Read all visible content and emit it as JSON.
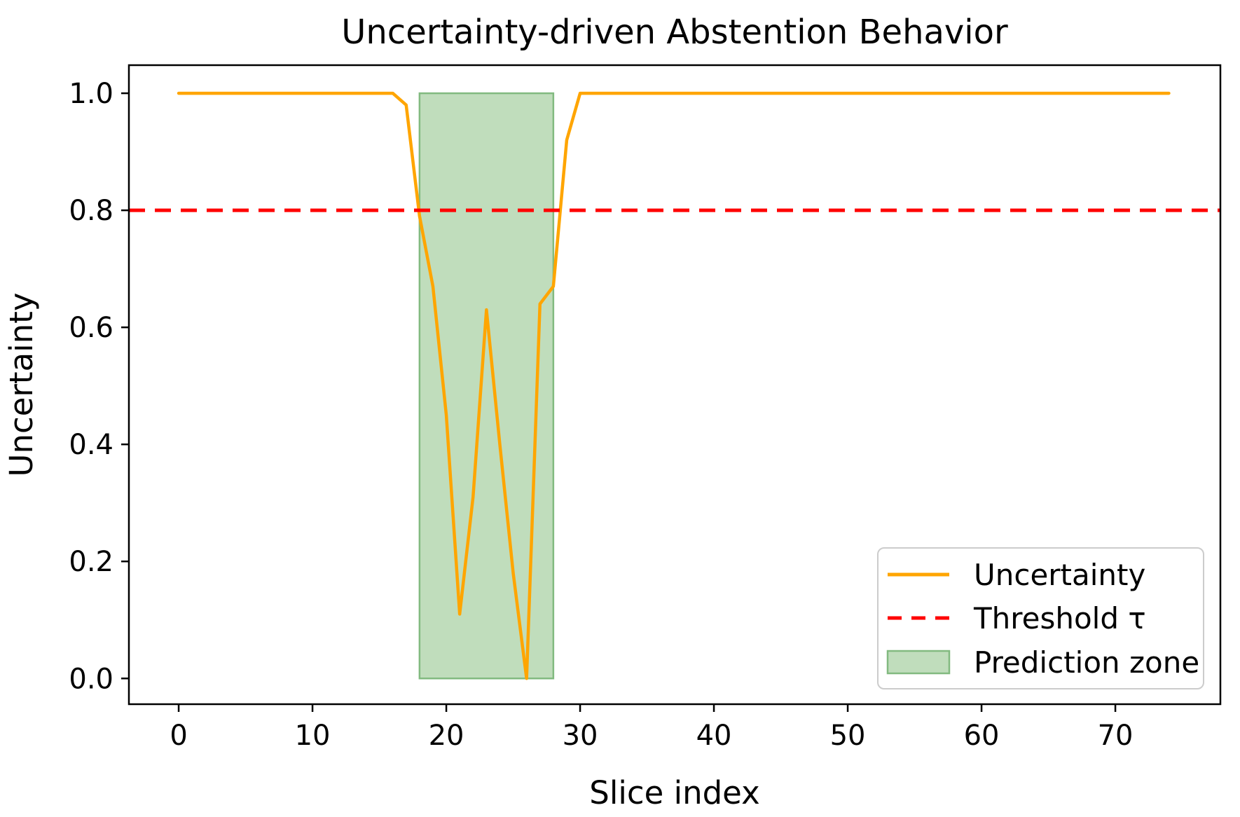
{
  "chart_data": {
    "type": "line",
    "title": "Uncertainty-driven Abstention Behavior",
    "xlabel": "Slice index",
    "ylabel": "Uncertainty",
    "xlim": [
      -3.72,
      77.85
    ],
    "ylim": [
      -0.044,
      1.048
    ],
    "grid": false,
    "xticks": {
      "values": [
        0,
        10,
        20,
        30,
        40,
        50,
        60,
        70
      ],
      "labels": [
        "0",
        "10",
        "20",
        "30",
        "40",
        "50",
        "60",
        "70"
      ]
    },
    "yticks": {
      "values": [
        0.0,
        0.2,
        0.4,
        0.6,
        0.8,
        1.0
      ],
      "labels": [
        "0.0",
        "0.2",
        "0.4",
        "0.6",
        "0.8",
        "1.0"
      ]
    },
    "series": [
      {
        "name": "Uncertainty",
        "color": "#ffa500",
        "line_width": 4.5,
        "x": [
          0,
          1,
          2,
          3,
          4,
          5,
          6,
          7,
          8,
          9,
          10,
          11,
          12,
          13,
          14,
          15,
          16,
          17,
          18,
          19,
          20,
          21,
          22,
          23,
          24,
          25,
          26,
          27,
          28,
          29,
          30,
          31,
          32,
          33,
          34,
          35,
          36,
          37,
          38,
          39,
          40,
          41,
          42,
          43,
          44,
          45,
          46,
          47,
          48,
          49,
          50,
          51,
          52,
          53,
          54,
          55,
          56,
          57,
          58,
          59,
          60,
          61,
          62,
          63,
          64,
          65,
          66,
          67,
          68,
          69,
          70,
          71,
          72,
          73,
          74
        ],
        "values": [
          1.0,
          1.0,
          1.0,
          1.0,
          1.0,
          1.0,
          1.0,
          1.0,
          1.0,
          1.0,
          1.0,
          1.0,
          1.0,
          1.0,
          1.0,
          1.0,
          1.0,
          0.98,
          0.79,
          0.67,
          0.45,
          0.11,
          0.31,
          0.63,
          0.4,
          0.18,
          0.0,
          0.64,
          0.67,
          0.92,
          1.0,
          1.0,
          1.0,
          1.0,
          1.0,
          1.0,
          1.0,
          1.0,
          1.0,
          1.0,
          1.0,
          1.0,
          1.0,
          1.0,
          1.0,
          1.0,
          1.0,
          1.0,
          1.0,
          1.0,
          1.0,
          1.0,
          1.0,
          1.0,
          1.0,
          1.0,
          1.0,
          1.0,
          1.0,
          1.0,
          1.0,
          1.0,
          1.0,
          1.0,
          1.0,
          1.0,
          1.0,
          1.0,
          1.0,
          1.0,
          1.0,
          1.0,
          1.0,
          1.0,
          1.0
        ]
      }
    ],
    "threshold": {
      "label": "Threshold τ",
      "value": 0.8,
      "color": "#ff0000",
      "style": "dashed",
      "line_width": 5
    },
    "prediction_zone": {
      "label": "Prediction zone",
      "x_start": 18,
      "x_end": 28,
      "y_start": 0.0,
      "y_end": 1.0,
      "fill_color": "#c0ddbc",
      "edge_color": "#82ba80"
    },
    "legend": {
      "position": "lower right",
      "items": [
        {
          "label": "Uncertainty",
          "swatch": "line",
          "color": "#ffa500"
        },
        {
          "label": "Threshold τ",
          "swatch": "dash",
          "color": "#ff0000"
        },
        {
          "label": "Prediction zone",
          "swatch": "patch",
          "color": "#c0ddbc"
        }
      ]
    }
  }
}
